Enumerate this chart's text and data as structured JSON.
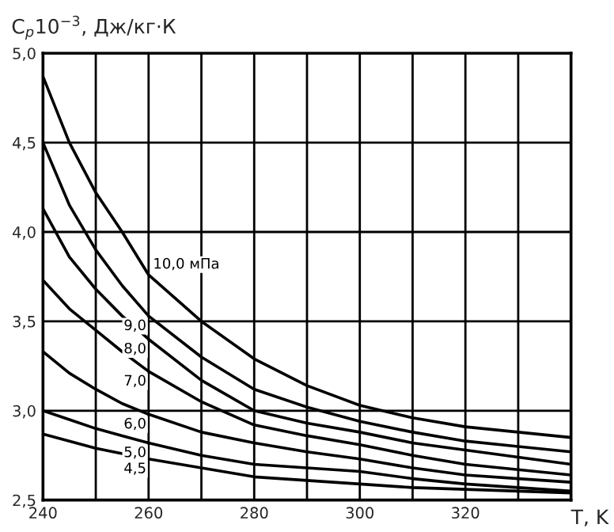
{
  "chart_data": {
    "type": "line",
    "xlabel": "T, K",
    "ylabel": "C$_{p}$10$^{−3}$, Дж/кг·К",
    "x": [
      240,
      245,
      250,
      255,
      260,
      270,
      280,
      290,
      300,
      310,
      320,
      330,
      340
    ],
    "series": [
      {
        "name": "10,0 мПа",
        "color": "#000000",
        "values": [
          4.87,
          4.5,
          4.22,
          4.0,
          3.76,
          3.5,
          3.29,
          3.14,
          3.03,
          2.96,
          2.91,
          2.88,
          2.85
        ]
      },
      {
        "name": "9,0",
        "color": "#000000",
        "values": [
          4.5,
          4.15,
          3.9,
          3.7,
          3.53,
          3.3,
          3.12,
          3.02,
          2.94,
          2.88,
          2.83,
          2.8,
          2.77
        ]
      },
      {
        "name": "8,0",
        "color": "#000000",
        "values": [
          4.13,
          3.86,
          3.68,
          3.53,
          3.4,
          3.17,
          3.0,
          2.93,
          2.88,
          2.82,
          2.78,
          2.74,
          2.7
        ]
      },
      {
        "name": "7,0",
        "color": "#000000",
        "values": [
          3.73,
          3.57,
          3.45,
          3.33,
          3.22,
          3.05,
          2.92,
          2.86,
          2.81,
          2.75,
          2.7,
          2.67,
          2.64
        ]
      },
      {
        "name": "6,0",
        "color": "#000000",
        "values": [
          3.33,
          3.21,
          3.12,
          3.04,
          2.98,
          2.88,
          2.82,
          2.77,
          2.73,
          2.68,
          2.64,
          2.62,
          2.6
        ]
      },
      {
        "name": "5,0",
        "color": "#000000",
        "values": [
          3.0,
          2.95,
          2.9,
          2.86,
          2.82,
          2.75,
          2.7,
          2.68,
          2.66,
          2.62,
          2.59,
          2.57,
          2.55
        ]
      },
      {
        "name": "4,5",
        "color": "#000000",
        "values": [
          2.87,
          2.83,
          2.79,
          2.76,
          2.73,
          2.68,
          2.63,
          2.61,
          2.59,
          2.57,
          2.56,
          2.55,
          2.54
        ]
      }
    ],
    "xlim": [
      240,
      340
    ],
    "xticks": [
      240,
      {
        "value": 250,
        "label": null
      },
      260,
      {
        "value": 270,
        "label": null
      },
      280,
      {
        "value": 290,
        "label": null
      },
      300,
      {
        "value": 310,
        "label": null
      },
      320,
      {
        "value": 330,
        "label": null
      }
    ],
    "ylim": [
      2.5,
      5.0
    ],
    "yticks": [
      {
        "value": 2.5,
        "label": "2,5"
      },
      {
        "value": 3.0,
        "label": "3,0"
      },
      {
        "value": 3.5,
        "label": "3,5"
      },
      {
        "value": 4.0,
        "label": "4,0"
      },
      {
        "value": 4.5,
        "label": "4,5"
      },
      {
        "value": 5.0,
        "label": "5,0"
      }
    ],
    "grid": true,
    "legend": false,
    "marker": "none",
    "line_style": "solid"
  }
}
